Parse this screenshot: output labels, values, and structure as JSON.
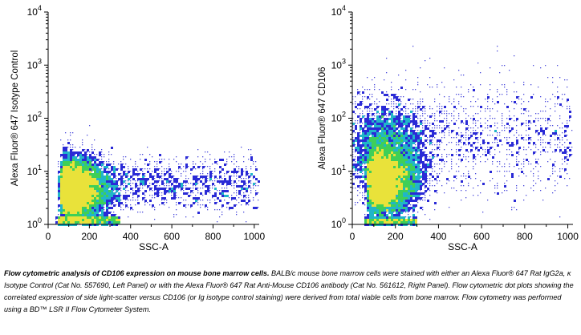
{
  "chart_data": [
    {
      "type": "scatter",
      "panel": "left",
      "xlabel": "SSC-A",
      "ylabel": "Alexa Fluor® 647 Isotype Control",
      "xlim": [
        0,
        1024
      ],
      "ylim": [
        1,
        10000
      ],
      "yscale": "log",
      "x_ticks": [
        "0",
        "200",
        "400",
        "600",
        "800",
        "1000"
      ],
      "y_ticks": [
        {
          "base": "10",
          "exp": "0"
        },
        {
          "base": "10",
          "exp": "1"
        },
        {
          "base": "10",
          "exp": "2"
        },
        {
          "base": "10",
          "exp": "3"
        },
        {
          "base": "10",
          "exp": "4"
        }
      ],
      "grid": false,
      "populations": [
        {
          "x_center": 150,
          "y_center": 5,
          "note": "main viable-cell cluster"
        }
      ],
      "y_upper_extent": 30
    },
    {
      "type": "scatter",
      "panel": "right",
      "xlabel": "SSC-A",
      "ylabel": "Alexa Fluor® 647 CD106",
      "xlim": [
        0,
        1024
      ],
      "ylim": [
        1,
        10000
      ],
      "yscale": "log",
      "x_ticks": [
        "0",
        "200",
        "400",
        "600",
        "800",
        "1000"
      ],
      "y_ticks": [
        {
          "base": "10",
          "exp": "0"
        },
        {
          "base": "10",
          "exp": "1"
        },
        {
          "base": "10",
          "exp": "2"
        },
        {
          "base": "10",
          "exp": "3"
        },
        {
          "base": "10",
          "exp": "4"
        }
      ],
      "grid": false,
      "populations": [
        {
          "x_center": 120,
          "y_center": 8,
          "note": "main viable-cell cluster"
        },
        {
          "x_center": 250,
          "y_center": 60,
          "note": "CD106+ spread"
        }
      ],
      "y_upper_extent": 1000
    }
  ],
  "caption": {
    "bold": "Flow cytometric analysis of CD106 expression on mouse bone marrow cells.",
    "text": "BALB/c mouse bone marrow cells were stained with either an Alexa Fluor® 647 Rat IgG2a, κ Isotype Control (Cat No. 557690, Left Panel) or with the Alexa Fluor® 647 Rat Anti-Mouse CD106 antibody (Cat No. 561612, Right Panel). Flow cytometric dot plots showing the correlated expression of side light-scatter versus CD106 (or Ig isotype control staining) were derived from total viable cells from bone marrow. Flow cytometry was performed using a BD™ LSR II Flow Cytometer System."
  },
  "colors": {
    "density_low": "#2a2ad6",
    "density_mid": "#21b5c9",
    "density_high": "#3ecf58",
    "density_peak": "#e9e23a",
    "axis": "#000000"
  }
}
